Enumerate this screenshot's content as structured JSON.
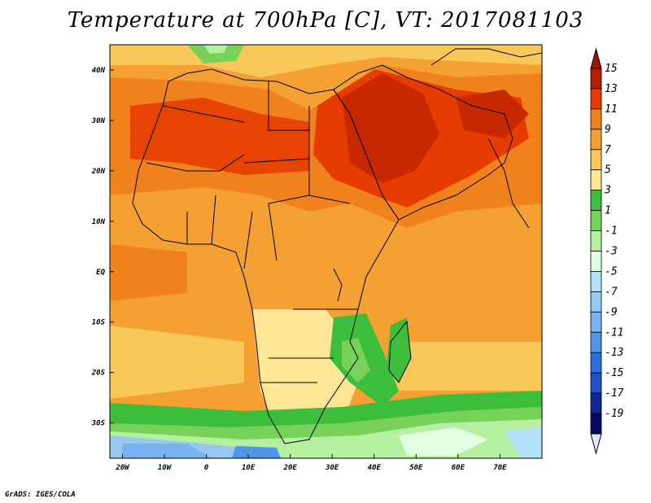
{
  "title": "Temperature at 700hPa [C], VT: 2017081103",
  "credit": "GrADS: IGES/COLA",
  "map": {
    "variable": "Temperature at 700hPa",
    "units": "C",
    "valid_time": "2017081103",
    "lon_range": [
      -23,
      80
    ],
    "lat_range": [
      -37,
      45
    ],
    "x_ticks": [
      {
        "value": -20,
        "label": "20W"
      },
      {
        "value": -10,
        "label": "10W"
      },
      {
        "value": 0,
        "label": "0"
      },
      {
        "value": 10,
        "label": "10E"
      },
      {
        "value": 20,
        "label": "20E"
      },
      {
        "value": 30,
        "label": "30E"
      },
      {
        "value": 40,
        "label": "40E"
      },
      {
        "value": 50,
        "label": "50E"
      },
      {
        "value": 60,
        "label": "60E"
      },
      {
        "value": 70,
        "label": "70E"
      }
    ],
    "y_ticks": [
      {
        "value": 40,
        "label": "40N"
      },
      {
        "value": 30,
        "label": "30N"
      },
      {
        "value": 20,
        "label": "20N"
      },
      {
        "value": 10,
        "label": "10N"
      },
      {
        "value": 0,
        "label": "EQ"
      },
      {
        "value": -10,
        "label": "10S"
      },
      {
        "value": -20,
        "label": "20S"
      },
      {
        "value": -30,
        "label": "30S"
      }
    ]
  },
  "colorbar": {
    "levels": [
      {
        "label": "15",
        "color": "#b41e00"
      },
      {
        "label": "13",
        "color": "#e63c00"
      },
      {
        "label": "11",
        "color": "#f0821e"
      },
      {
        "label": "9",
        "color": "#f5a032"
      },
      {
        "label": "7",
        "color": "#fac85a"
      },
      {
        "label": "5",
        "color": "#fde796"
      },
      {
        "label": "3",
        "color": "#3cbe3c"
      },
      {
        "label": "1",
        "color": "#78d25a"
      },
      {
        "label": "-1",
        "color": "#b4f0a0"
      },
      {
        "label": "-3",
        "color": "#e1ffe1"
      },
      {
        "label": "-5",
        "color": "#b4e1fa"
      },
      {
        "label": "-7",
        "color": "#96c8f0"
      },
      {
        "label": "-9",
        "color": "#78b4f0"
      },
      {
        "label": "-11",
        "color": "#5096e6"
      },
      {
        "label": "-13",
        "color": "#2d6edc"
      },
      {
        "label": "-15",
        "color": "#1e50c8"
      },
      {
        "label": "-17",
        "color": "#0f2896"
      },
      {
        "label": "-19",
        "color": "#000a64"
      }
    ],
    "top_arrow_color": "#a01400",
    "bottom_arrow_color": "#e6e6ff"
  }
}
